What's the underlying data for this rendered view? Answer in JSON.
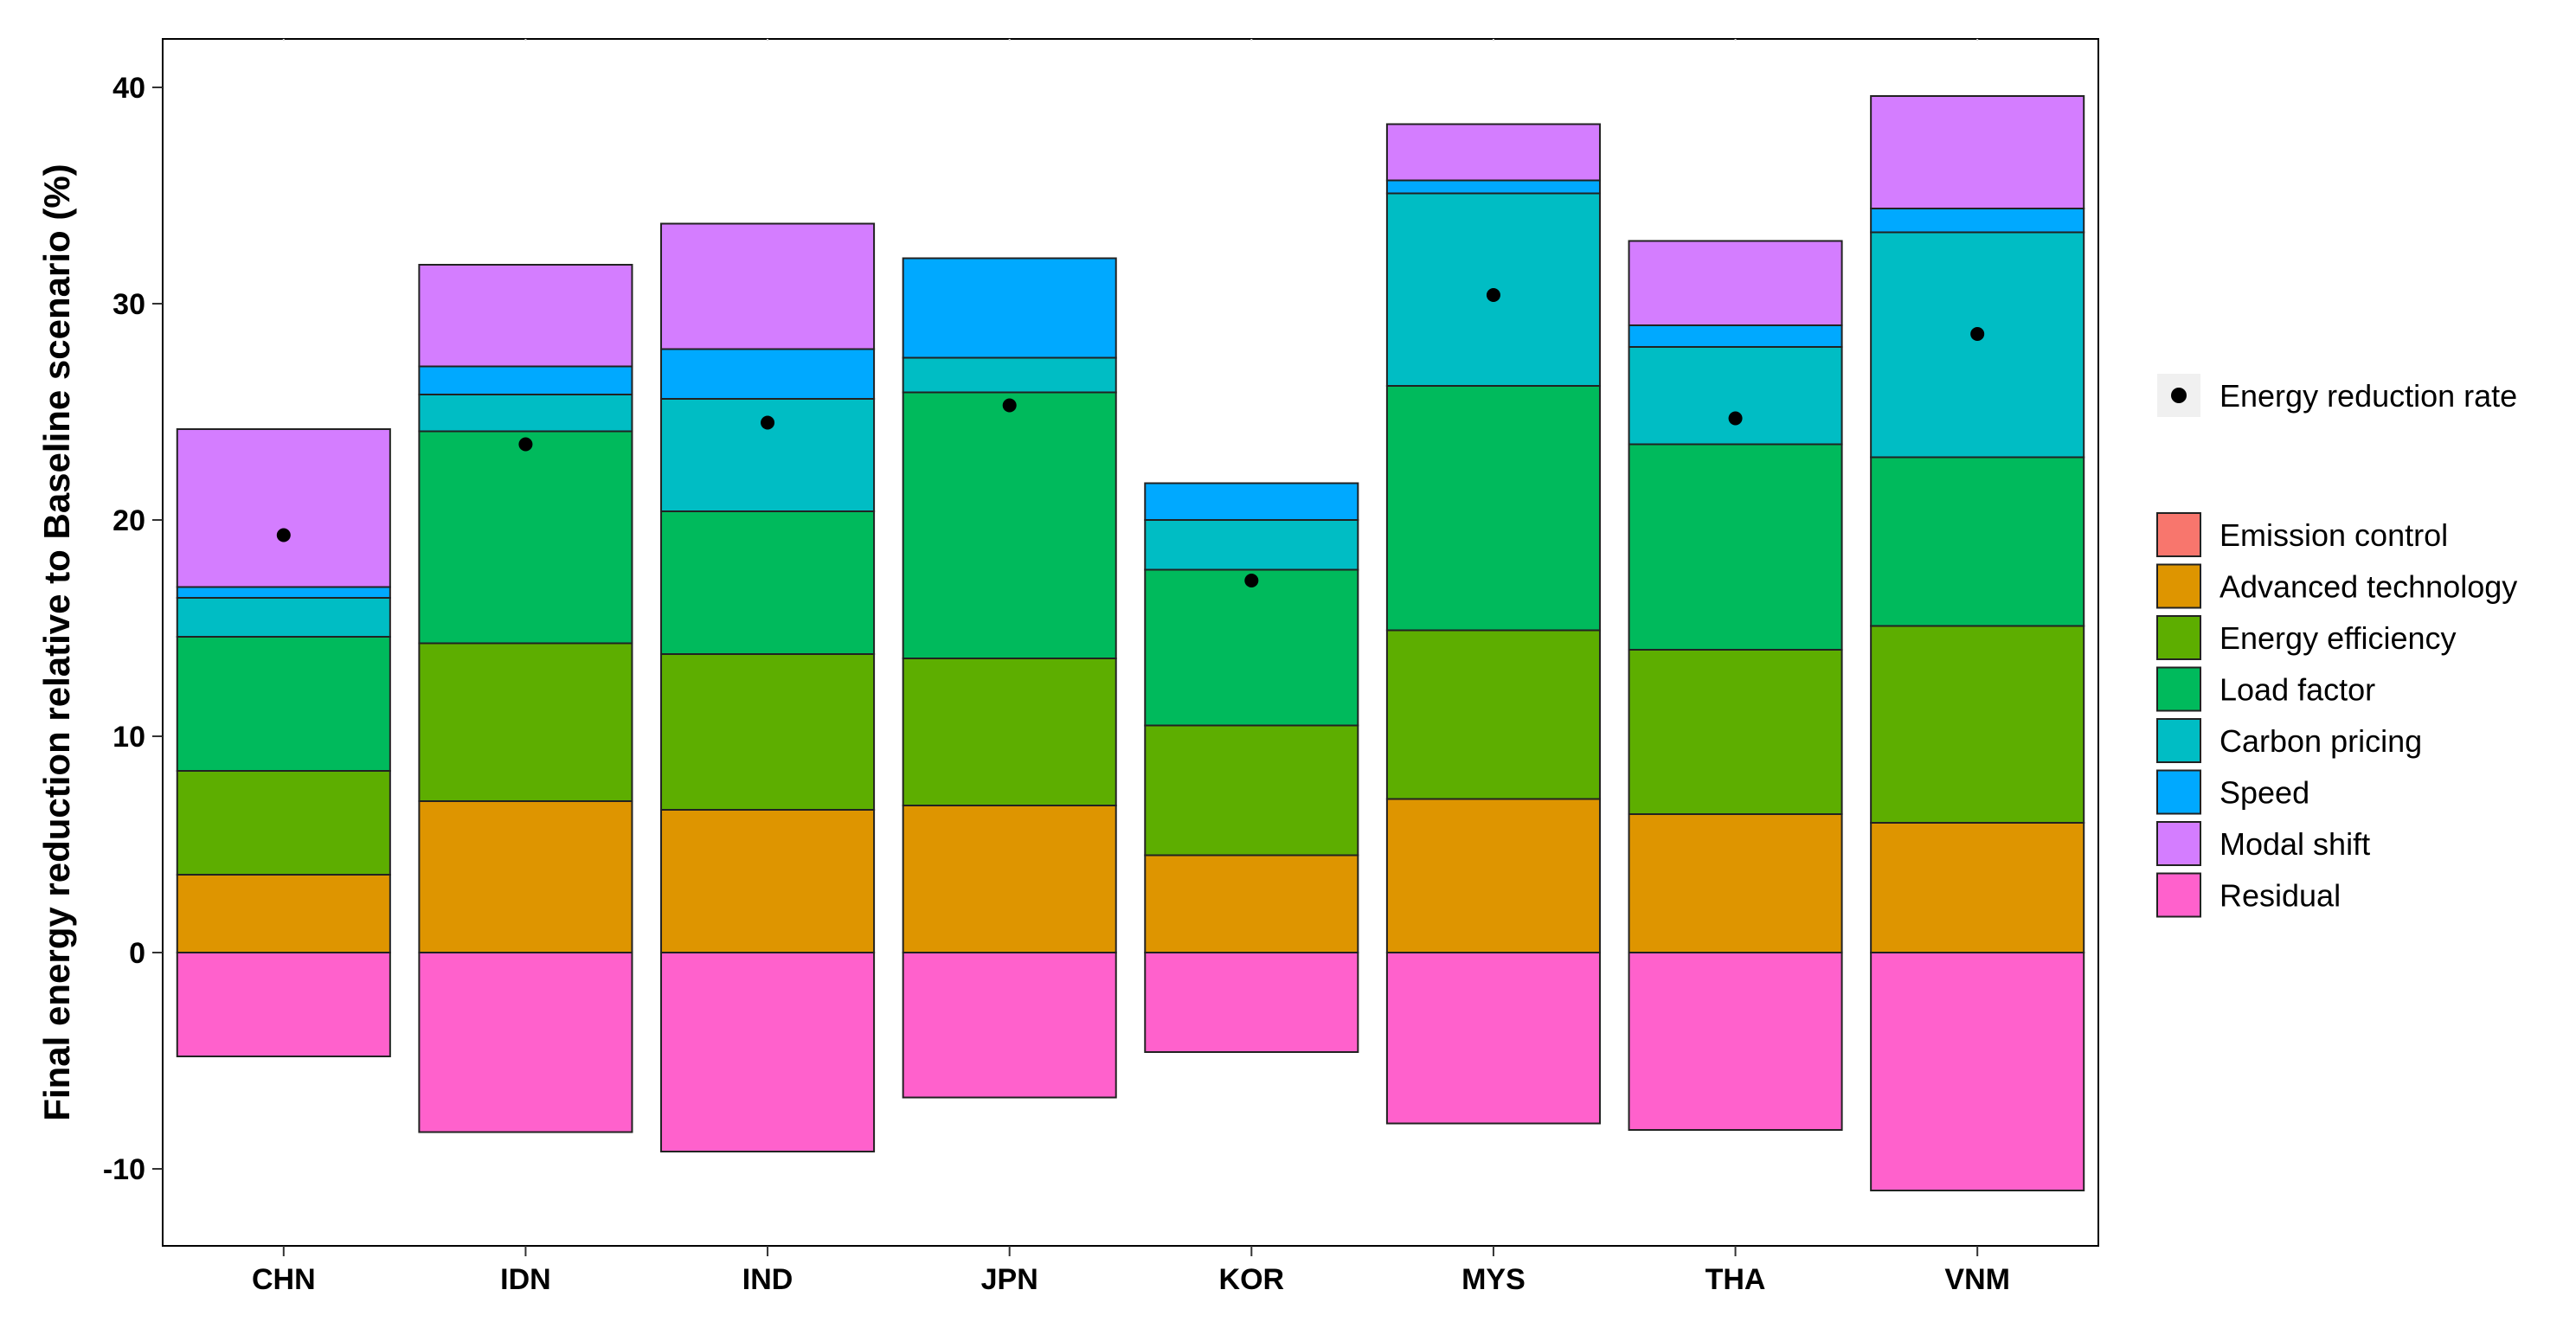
{
  "chart_data": {
    "type": "bar",
    "stacked": true,
    "ylabel": "Final energy reduction relative to Baseline scenario (%)",
    "xlabel": "",
    "ylim": [
      -13.5,
      42
    ],
    "yticks": [
      -10,
      0,
      10,
      20,
      30,
      40
    ],
    "ytick_labels": [
      "-10",
      "0",
      "10",
      "20",
      "30",
      "40"
    ],
    "categories": [
      "CHN",
      "IDN",
      "IND",
      "JPN",
      "KOR",
      "MYS",
      "THA",
      "VNM"
    ],
    "series": [
      {
        "name": "Emission control",
        "color": "#F8766D",
        "values": [
          0,
          0,
          0,
          0,
          0,
          0,
          0,
          0
        ]
      },
      {
        "name": "Advanced technology",
        "color": "#DE9500",
        "values": [
          3.6,
          7.0,
          6.6,
          6.8,
          4.5,
          7.1,
          6.4,
          6.0
        ]
      },
      {
        "name": "Energy efficiency",
        "color": "#5DAE00",
        "values": [
          4.8,
          7.3,
          7.2,
          6.8,
          6.0,
          7.8,
          7.6,
          9.1
        ]
      },
      {
        "name": "Load factor",
        "color": "#00BA5C",
        "values": [
          6.2,
          9.8,
          6.6,
          12.3,
          7.2,
          11.3,
          9.5,
          7.8
        ]
      },
      {
        "name": "Carbon pricing",
        "color": "#00BDC4",
        "values": [
          1.8,
          1.7,
          5.2,
          1.6,
          2.3,
          8.9,
          4.5,
          10.4
        ]
      },
      {
        "name": "Speed",
        "color": "#00A9FF",
        "values": [
          0.5,
          1.3,
          2.3,
          4.6,
          1.7,
          0.6,
          1.0,
          1.1
        ]
      },
      {
        "name": "Modal shift",
        "color": "#D47DFF",
        "values": [
          7.3,
          4.7,
          5.8,
          0,
          0,
          2.6,
          3.9,
          5.2
        ]
      },
      {
        "name": "Residual",
        "color": "#FF61CC",
        "values": [
          -4.8,
          -8.3,
          -9.2,
          -6.7,
          -4.6,
          -7.9,
          -8.2,
          -11.0
        ]
      }
    ],
    "points": {
      "name": "Energy reduction rate",
      "values": [
        19.3,
        23.5,
        24.5,
        25.3,
        17.2,
        30.4,
        24.7,
        28.6
      ]
    },
    "legend": {
      "point_label": "Energy reduction rate",
      "bar_labels": [
        "Emission control",
        "Advanced technology",
        "Energy efficiency",
        "Load factor",
        "Carbon pricing",
        "Speed",
        "Modal shift",
        "Residual"
      ],
      "position": "right"
    }
  }
}
